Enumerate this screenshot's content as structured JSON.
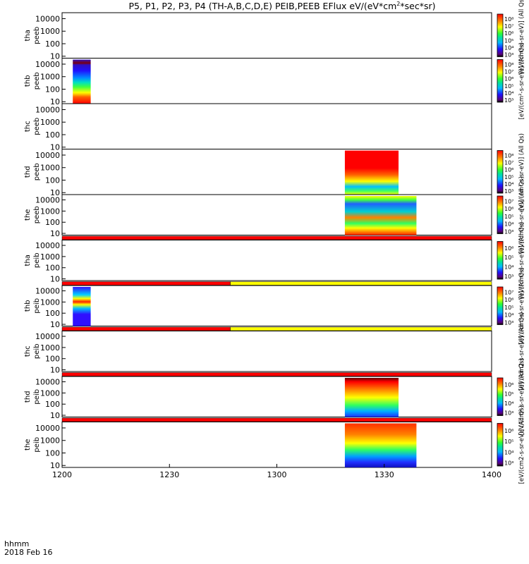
{
  "chart_data": {
    "type": "heatmap",
    "title": "P5, P1, P2, P3, P4 (TH-A,B,C,D,E) PEIB,PEEB EFlux eV/(eV*cm",
    "title_sup": "2",
    "title_tail": "*sec*sr)",
    "x_axis": {
      "units_label": "hhmm",
      "date_label": "2018 Feb 16",
      "ticks": [
        "1200",
        "1230",
        "1300",
        "1330",
        "1400"
      ],
      "range": [
        "12:00",
        "14:00"
      ]
    },
    "y_axis": {
      "scale": "log",
      "range": [
        7,
        30000
      ],
      "ticks": [
        "10",
        "100",
        "1000",
        "10000"
      ]
    },
    "panels": [
      {
        "id": "tha_peeb",
        "label1": "tha",
        "label2": "peeb",
        "scale": "log",
        "data_spans": [],
        "colorbar_ticks": [
          "10³",
          "10⁴",
          "10⁵",
          "10⁶",
          "10⁷",
          "10⁸"
        ],
        "colorbar_label": "[eV/(cm²-s-sr-eV)] (All Qs)",
        "flag_bar": null
      },
      {
        "id": "thb_peeb",
        "label1": "thb",
        "label2": "peeb",
        "scale": "log",
        "data_spans": [
          [
            "12:03",
            "12:08"
          ]
        ],
        "colorbar_ticks": [
          "10³",
          "10⁴",
          "10⁵",
          "10⁶",
          "10⁷",
          "10⁸"
        ],
        "colorbar_label": "[eV/(cm²-s-sr-eV)] (All Qs)",
        "flag_bar": null
      },
      {
        "id": "thc_peeb",
        "label1": "thc",
        "label2": "peeb",
        "scale": "log",
        "data_spans": [],
        "colorbar_ticks": [],
        "colorbar_label": "",
        "flag_bar": null
      },
      {
        "id": "thd_peeb",
        "label1": "thd",
        "label2": "peeb",
        "scale": "log",
        "data_spans": [
          [
            "13:19",
            "13:34"
          ]
        ],
        "colorbar_ticks": [
          "10³",
          "10⁴",
          "10⁵",
          "10⁶",
          "10⁷",
          "10⁸"
        ],
        "colorbar_label": "[eV/(cm²-s-sr-eV)] (All Qs)",
        "flag_bar": null
      },
      {
        "id": "the_peeb",
        "label1": "the",
        "label2": "peeb",
        "scale": "log",
        "data_spans": [
          [
            "13:19",
            "13:39"
          ]
        ],
        "colorbar_ticks": [
          "10³",
          "10⁴",
          "10⁵",
          "10⁶",
          "10⁷"
        ],
        "colorbar_label": "[eV/(cm²-s-sr-eV)] (All Qs)",
        "flag_bar": {
          "segments": [
            {
              "span": [
                "12:00",
                "14:00"
              ],
              "color": "#ff0000"
            }
          ]
        }
      },
      {
        "id": "tha_peib",
        "label1": "tha",
        "label2": "peib",
        "scale": "log",
        "data_spans": [],
        "colorbar_ticks": [
          "10³",
          "10⁴",
          "10⁵",
          "10⁶"
        ],
        "colorbar_label": "[eV/(cm²-s-sr-eV)] (All Qs)",
        "flag_bar": {
          "segments": [
            {
              "span": [
                "12:00",
                "12:47"
              ],
              "color": "#ff0000"
            },
            {
              "span": [
                "12:47",
                "14:00"
              ],
              "color": "#ffff00"
            }
          ]
        }
      },
      {
        "id": "thb_peib",
        "label1": "thb",
        "label2": "peib",
        "scale": "log",
        "data_spans": [
          [
            "12:03",
            "12:08"
          ]
        ],
        "colorbar_ticks": [
          "10³",
          "10⁴",
          "10⁵",
          "10⁶",
          "10⁷"
        ],
        "colorbar_label": "[eV/(cm²-s-sr-eV)] (All Qs)",
        "flag_bar": {
          "segments": [
            {
              "span": [
                "12:00",
                "12:47"
              ],
              "color": "#ff0000"
            },
            {
              "span": [
                "12:47",
                "14:00"
              ],
              "color": "#ffff00"
            }
          ]
        }
      },
      {
        "id": "thc_peib",
        "label1": "thc",
        "label2": "peib",
        "scale": "log",
        "data_spans": [],
        "colorbar_ticks": [],
        "colorbar_label": "[eV/(cm2-s-sr-eV)] (All Qs)",
        "flag_bar": {
          "segments": [
            {
              "span": [
                "12:00",
                "14:00"
              ],
              "color": "#ff0000"
            }
          ]
        }
      },
      {
        "id": "thd_peib",
        "label1": "thd",
        "label2": "peib",
        "scale": "log",
        "data_spans": [
          [
            "13:19",
            "13:34"
          ]
        ],
        "colorbar_ticks": [
          "10³",
          "10⁴",
          "10⁵",
          "10⁶"
        ],
        "colorbar_label": "[eV/(cm²-s-sr-eV)] (All Qs)",
        "flag_bar": {
          "segments": [
            {
              "span": [
                "12:00",
                "14:00"
              ],
              "color": "#ff0000"
            }
          ]
        }
      },
      {
        "id": "the_peib",
        "label1": "the",
        "label2": "peib",
        "scale": "log",
        "data_spans": [
          [
            "13:19",
            "13:39"
          ]
        ],
        "colorbar_ticks": [
          "10³",
          "10⁴",
          "10⁵",
          "10⁶"
        ],
        "colorbar_label": "[eV/(cm2-s-sr-eV)] (All Qs)",
        "flag_bar": null
      }
    ],
    "colormap": "rainbow (purple-blue-cyan-green-yellow-red)"
  }
}
